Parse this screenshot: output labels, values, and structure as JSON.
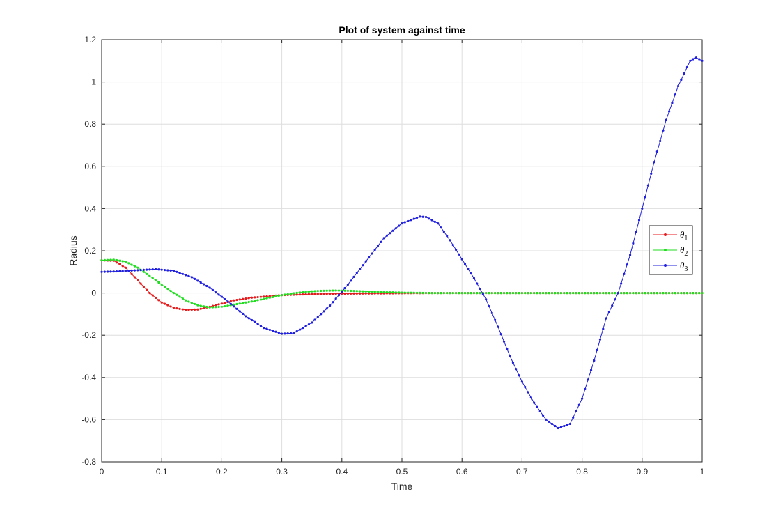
{
  "chart_data": {
    "type": "line",
    "title": "Plot of system against time",
    "xlabel": "Time",
    "ylabel": "Radius",
    "xlim": [
      0,
      1
    ],
    "ylim": [
      -0.8,
      1.2
    ],
    "xticks": [
      0,
      0.1,
      0.2,
      0.3,
      0.4,
      0.5,
      0.6,
      0.7,
      0.8,
      0.9,
      1
    ],
    "xtick_labels": [
      "0",
      "0.1",
      "0.2",
      "0.3",
      "0.4",
      "0.5",
      "0.6",
      "0.7",
      "0.8",
      "0.9",
      "1"
    ],
    "yticks": [
      -0.8,
      -0.6,
      -0.4,
      -0.2,
      0,
      0.2,
      0.4,
      0.6,
      0.8,
      1,
      1.2
    ],
    "ytick_labels": [
      "-0.8",
      "-0.6",
      "-0.4",
      "-0.2",
      "0",
      "0.2",
      "0.4",
      "0.6",
      "0.8",
      "1",
      "1.2"
    ],
    "grid": true,
    "legend_position": "right",
    "series": [
      {
        "name": "θ1",
        "symbol": "θ",
        "subscript": "1",
        "color": "#e41a1c",
        "x": [
          0,
          0.02,
          0.04,
          0.06,
          0.08,
          0.1,
          0.12,
          0.14,
          0.16,
          0.18,
          0.2,
          0.22,
          0.25,
          0.3,
          0.35,
          0.4,
          0.45,
          0.5,
          0.55,
          0.6,
          0.7,
          0.8,
          0.9,
          1.0
        ],
        "y": [
          0.155,
          0.153,
          0.12,
          0.06,
          0.0,
          -0.045,
          -0.07,
          -0.08,
          -0.078,
          -0.065,
          -0.05,
          -0.035,
          -0.022,
          -0.01,
          -0.005,
          -0.003,
          -0.002,
          -0.001,
          0,
          0,
          0,
          0,
          0,
          0
        ]
      },
      {
        "name": "θ2",
        "symbol": "θ",
        "subscript": "2",
        "color": "#22dd22",
        "x": [
          0,
          0.02,
          0.04,
          0.06,
          0.08,
          0.1,
          0.12,
          0.14,
          0.16,
          0.18,
          0.2,
          0.22,
          0.25,
          0.28,
          0.3,
          0.33,
          0.36,
          0.39,
          0.42,
          0.45,
          0.5,
          0.55,
          0.6,
          0.7,
          0.8,
          0.9,
          1.0
        ],
        "y": [
          0.155,
          0.158,
          0.148,
          0.12,
          0.08,
          0.04,
          0.0,
          -0.035,
          -0.058,
          -0.068,
          -0.065,
          -0.055,
          -0.04,
          -0.022,
          -0.01,
          0.003,
          0.01,
          0.012,
          0.01,
          0.006,
          0.002,
          0.0,
          0.0,
          0,
          0,
          0,
          0
        ]
      },
      {
        "name": "θ3",
        "symbol": "θ",
        "subscript": "3",
        "color": "#1f1fdd",
        "x": [
          0,
          0.03,
          0.06,
          0.09,
          0.12,
          0.15,
          0.18,
          0.21,
          0.24,
          0.27,
          0.3,
          0.32,
          0.35,
          0.38,
          0.41,
          0.44,
          0.47,
          0.5,
          0.53,
          0.54,
          0.56,
          0.58,
          0.6,
          0.62,
          0.64,
          0.66,
          0.68,
          0.7,
          0.72,
          0.74,
          0.76,
          0.78,
          0.8,
          0.82,
          0.84,
          0.86,
          0.88,
          0.9,
          0.92,
          0.94,
          0.96,
          0.98,
          0.99,
          1.0
        ],
        "y": [
          0.1,
          0.103,
          0.108,
          0.113,
          0.105,
          0.075,
          0.025,
          -0.04,
          -0.11,
          -0.165,
          -0.193,
          -0.19,
          -0.14,
          -0.06,
          0.04,
          0.15,
          0.26,
          0.33,
          0.362,
          0.36,
          0.33,
          0.25,
          0.16,
          0.07,
          -0.03,
          -0.16,
          -0.3,
          -0.42,
          -0.52,
          -0.6,
          -0.64,
          -0.62,
          -0.5,
          -0.32,
          -0.12,
          0.0,
          0.18,
          0.4,
          0.62,
          0.82,
          0.98,
          1.1,
          1.115,
          1.1
        ]
      }
    ]
  }
}
